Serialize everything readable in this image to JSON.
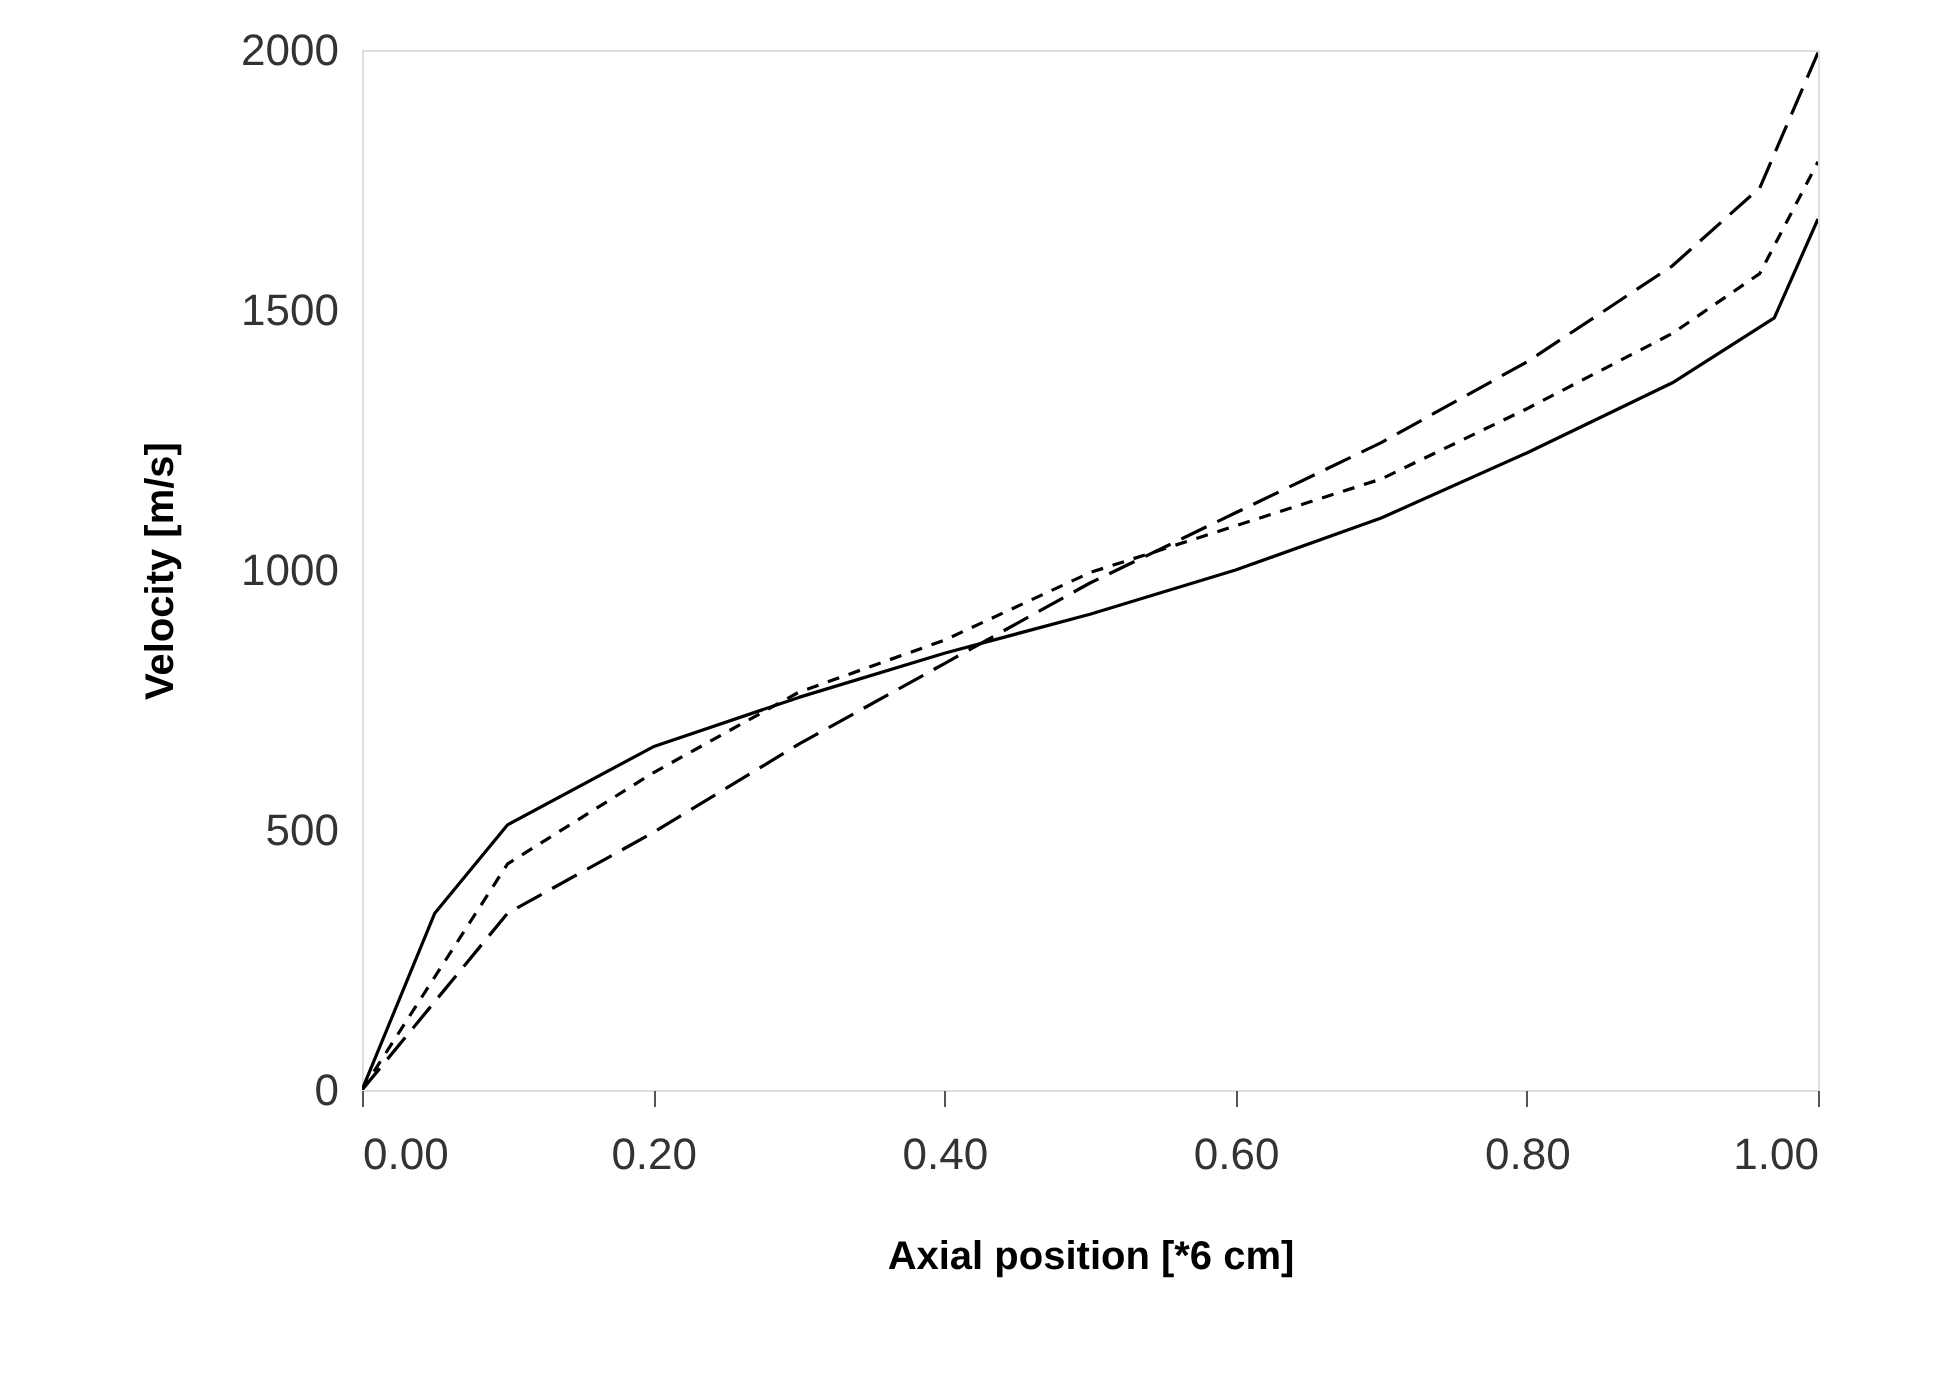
{
  "chart_data": {
    "type": "line",
    "xlabel": "Axial position  [*6  cm]",
    "ylabel": "Velocity  [m/s]",
    "xlim": [
      0,
      1
    ],
    "ylim": [
      0,
      2000
    ],
    "xticks": [
      {
        "value": 0,
        "label": "0.00"
      },
      {
        "value": 0.2,
        "label": "0.20"
      },
      {
        "value": 0.4,
        "label": "0.40"
      },
      {
        "value": 0.6,
        "label": "0.60"
      },
      {
        "value": 0.8,
        "label": "0.80"
      },
      {
        "value": 1,
        "label": "1.00"
      }
    ],
    "yticks": [
      0,
      500,
      1000,
      1500,
      2000
    ],
    "grid": false,
    "series": [
      {
        "color": "#000000",
        "line_style": "solid",
        "x": [
          0,
          0.05,
          0.1,
          0.2,
          0.3,
          0.4,
          0.5,
          0.6,
          0.7,
          0.8,
          0.9,
          0.97,
          1.0
        ],
        "values": [
          0,
          340,
          510,
          660,
          755,
          840,
          915,
          1000,
          1100,
          1225,
          1360,
          1485,
          1675
        ]
      },
      {
        "color": "#000000",
        "line_style": "dashed",
        "x": [
          0,
          0.1,
          0.2,
          0.3,
          0.4,
          0.5,
          0.6,
          0.7,
          0.8,
          0.9,
          0.96,
          1.0
        ],
        "values": [
          0,
          340,
          495,
          665,
          820,
          975,
          1110,
          1245,
          1400,
          1585,
          1735,
          1995
        ]
      },
      {
        "color": "#000000",
        "line_style": "dotted",
        "x": [
          0,
          0.1,
          0.2,
          0.3,
          0.4,
          0.5,
          0.6,
          0.7,
          0.8,
          0.9,
          0.96,
          1.0
        ],
        "values": [
          0,
          435,
          610,
          765,
          865,
          995,
          1085,
          1175,
          1310,
          1455,
          1570,
          1785
        ]
      }
    ]
  }
}
